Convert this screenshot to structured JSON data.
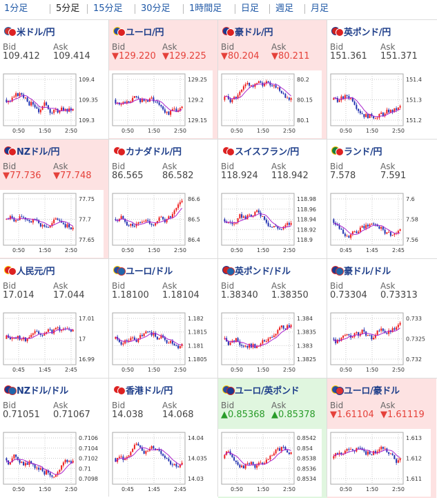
{
  "tabs": [
    "1分足",
    "5分足",
    "15分足",
    "30分足",
    "1時間足",
    "日足",
    "週足",
    "月足"
  ],
  "active_tab": 1,
  "labels": {
    "bid": "Bid",
    "ask": "Ask"
  },
  "colors": {
    "pair": "#1f3f8a",
    "down": "#e5413a",
    "up": "#2a9c2a",
    "candle_up": "#ee1c1c",
    "candle_down": "#2030b0",
    "ma": "#aa22cc"
  },
  "cards": [
    {
      "pair": "米ドル/円",
      "flags": [
        "us-flag",
        "jp-flag"
      ],
      "bid": "109.412",
      "ask": "109.414",
      "state": "neutral",
      "y_ticks": [
        "109.4",
        "109.35",
        "109.3"
      ],
      "x_ticks": [
        "0:50",
        "1:50",
        "2:50"
      ]
    },
    {
      "pair": "ユーロ/円",
      "flags": [
        "eu-flag",
        "jp-flag"
      ],
      "bid": "▼129.220",
      "ask": "▼129.225",
      "state": "down",
      "y_ticks": [
        "129.25",
        "129.2",
        "129.15"
      ],
      "x_ticks": [
        "0:50",
        "1:50",
        "2:50"
      ]
    },
    {
      "pair": "豪ドル/円",
      "flags": [
        "au-flag",
        "jp-flag"
      ],
      "bid": "▼80.204",
      "ask": "▼80.211",
      "state": "down",
      "y_ticks": [
        "80.2",
        "80.15",
        "80.1"
      ],
      "x_ticks": [
        "0:50",
        "1:50",
        "2:50"
      ]
    },
    {
      "pair": "英ポンド/円",
      "flags": [
        "gb-flag",
        "jp-flag"
      ],
      "bid": "151.361",
      "ask": "151.371",
      "state": "neutral",
      "y_ticks": [
        "151.4",
        "151.3",
        "151.2"
      ],
      "x_ticks": [
        "0:50",
        "1:50",
        "2:50"
      ]
    },
    {
      "pair": "NZドル/円",
      "flags": [
        "nz-flag",
        "jp-flag"
      ],
      "bid": "▼77.736",
      "ask": "▼77.748",
      "state": "down",
      "y_ticks": [
        "77.75",
        "77.7",
        "77.65"
      ],
      "x_ticks": [
        "0:50",
        "1:50",
        "2:50"
      ]
    },
    {
      "pair": "カナダドル/円",
      "flags": [
        "ca-flag",
        "jp-flag"
      ],
      "bid": "86.565",
      "ask": "86.582",
      "state": "neutral",
      "y_ticks": [
        "86.6",
        "86.5",
        "86.4"
      ],
      "x_ticks": [
        "0:50",
        "1:50",
        "2:50"
      ]
    },
    {
      "pair": "スイスフラン/円",
      "flags": [
        "ch-flag",
        "jp-flag"
      ],
      "bid": "118.924",
      "ask": "118.942",
      "state": "neutral",
      "y_ticks": [
        "118.98",
        "118.96",
        "118.94",
        "118.92",
        "118.9"
      ],
      "x_ticks": [
        "0:50",
        "1:50",
        "2:50"
      ]
    },
    {
      "pair": "ランド/円",
      "flags": [
        "za-flag",
        "jp-flag"
      ],
      "bid": "7.578",
      "ask": "7.591",
      "state": "neutral",
      "y_ticks": [
        "7.6",
        "7.58",
        "7.56"
      ],
      "x_ticks": [
        "0:45",
        "1:45",
        "2:45"
      ]
    },
    {
      "pair": "人民元/円",
      "flags": [
        "cn-flag",
        "jp-flag"
      ],
      "bid": "17.014",
      "ask": "17.044",
      "state": "neutral",
      "y_ticks": [
        "17.01",
        "17",
        "16.99"
      ],
      "x_ticks": [
        "0:45",
        "1:45",
        "2:45"
      ]
    },
    {
      "pair": "ユーロ/ドル",
      "flags": [
        "eu-flag",
        "us-flag"
      ],
      "bid": "1.18100",
      "ask": "1.18104",
      "state": "neutral",
      "y_ticks": [
        "1.182",
        "1.1815",
        "1.181",
        "1.1805"
      ],
      "x_ticks": [
        "0:50",
        "1:50",
        "2:50"
      ]
    },
    {
      "pair": "英ポンド/ドル",
      "flags": [
        "gb-flag",
        "us-flag"
      ],
      "bid": "1.38340",
      "ask": "1.38350",
      "state": "neutral",
      "y_ticks": [
        "1.384",
        "1.3835",
        "1.383",
        "1.3825"
      ],
      "x_ticks": [
        "0:50",
        "1:50",
        "2:50"
      ]
    },
    {
      "pair": "豪ドル/ドル",
      "flags": [
        "au-flag",
        "us-flag"
      ],
      "bid": "0.73304",
      "ask": "0.73313",
      "state": "neutral",
      "y_ticks": [
        "0.733",
        "0.7325",
        "0.732"
      ],
      "x_ticks": [
        "0:50",
        "1:50",
        "2:50"
      ]
    },
    {
      "pair": "NZドル/ドル",
      "flags": [
        "nz-flag",
        "us-flag"
      ],
      "bid": "0.71051",
      "ask": "0.71067",
      "state": "neutral",
      "y_ticks": [
        "0.7106",
        "0.7104",
        "0.7102",
        "0.71",
        "0.7098"
      ],
      "x_ticks": [
        "0:50",
        "1:50",
        "2:50"
      ]
    },
    {
      "pair": "香港ドル/円",
      "flags": [
        "hk-flag",
        "jp-flag"
      ],
      "bid": "14.038",
      "ask": "14.068",
      "state": "neutral",
      "y_ticks": [
        "14.04",
        "14.035",
        "14.03"
      ],
      "x_ticks": [
        "0:45",
        "1:45",
        "2:45"
      ]
    },
    {
      "pair": "ユーロ/英ポンド",
      "flags": [
        "eu-flag",
        "gb-flag"
      ],
      "bid": "▲0.85368",
      "ask": "▲0.85378",
      "state": "up",
      "y_ticks": [
        "0.8542",
        "0.854",
        "0.8538",
        "0.8536",
        "0.8534"
      ],
      "x_ticks": [
        "0:50",
        "1:50",
        "2:50"
      ]
    },
    {
      "pair": "ユーロ/豪ドル",
      "flags": [
        "eu-flag",
        "au-flag"
      ],
      "bid": "▼1.61104",
      "ask": "▼1.61119",
      "state": "down",
      "y_ticks": [
        "1.613",
        "1.612",
        "1.611"
      ],
      "x_ticks": [
        "0:50",
        "1:50",
        "2:50"
      ]
    }
  ]
}
